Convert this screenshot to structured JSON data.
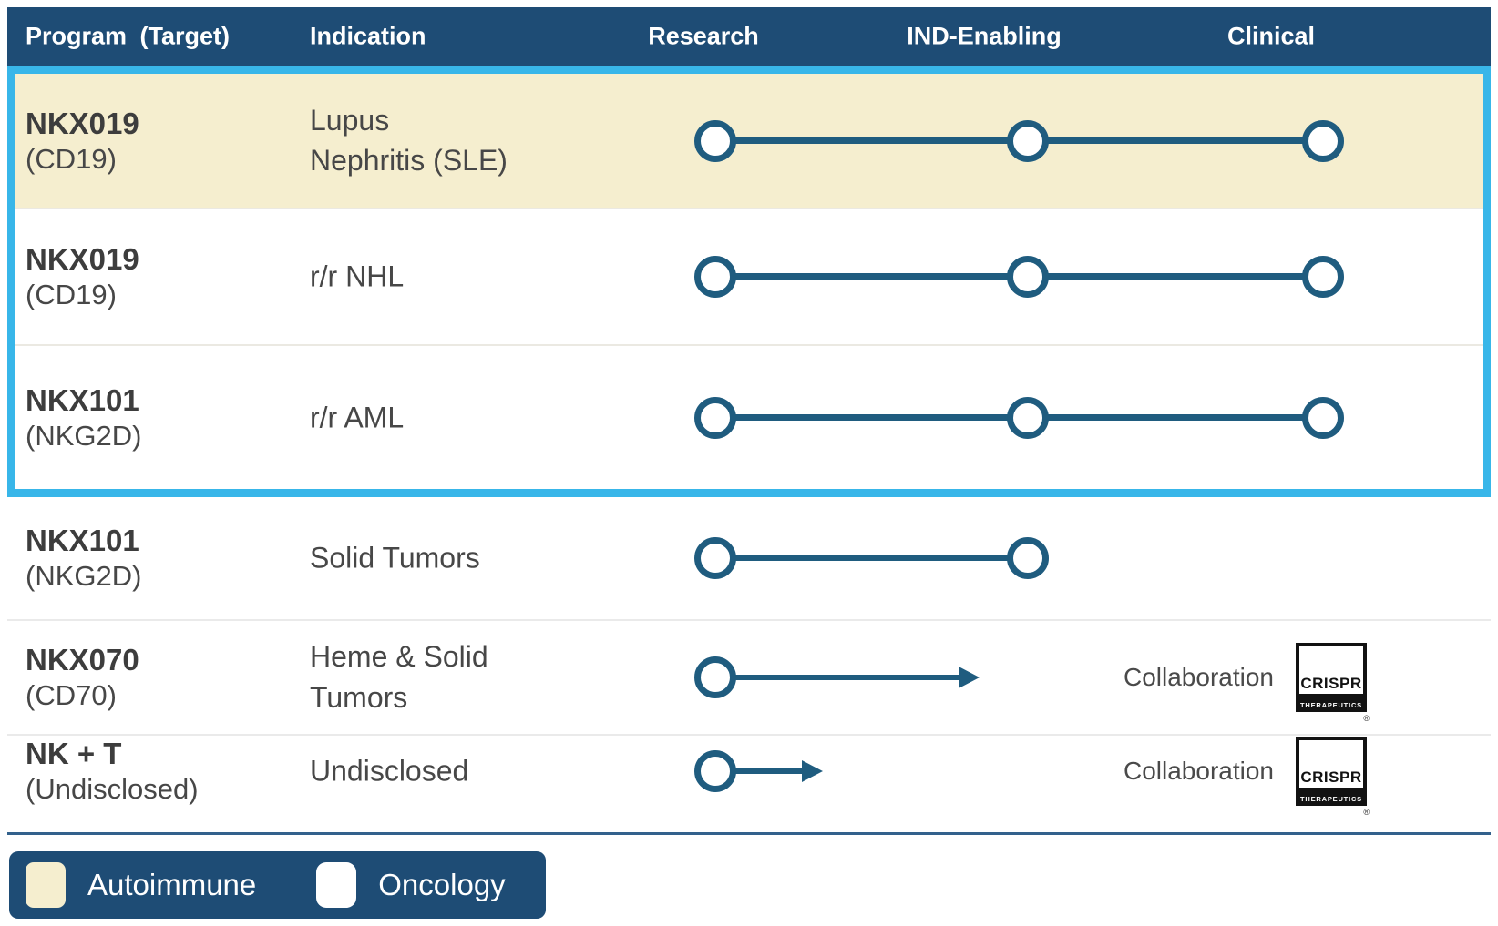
{
  "colors": {
    "header_bg": "#1e4c75",
    "legend_bg": "#1e4c75",
    "timeline": "#1f5c7f",
    "highlight_border": "#38b6e9",
    "autoimmune": "#f5eecf",
    "rule": "#33618c"
  },
  "chart_data": {
    "type": "table",
    "columns": [
      "Program (Target)",
      "Indication",
      "Research",
      "IND-Enabling",
      "Clinical"
    ],
    "rows": [
      {
        "program": "NKX019",
        "target": "(CD19)",
        "indication": "Lupus\nNephritis (SLE)",
        "category": "Autoimmune",
        "highlighted": true,
        "timeline": {
          "type": "milestones",
          "points": [
            "Research",
            "IND-Enabling",
            "Clinical"
          ]
        }
      },
      {
        "program": "NKX019",
        "target": "(CD19)",
        "indication": "r/r NHL",
        "category": "Oncology",
        "highlighted": true,
        "timeline": {
          "type": "milestones",
          "points": [
            "Research",
            "IND-Enabling",
            "Clinical"
          ]
        }
      },
      {
        "program": "NKX101",
        "target": "(NKG2D)",
        "indication": "r/r AML",
        "category": "Oncology",
        "highlighted": true,
        "timeline": {
          "type": "milestones",
          "points": [
            "Research",
            "IND-Enabling",
            "Clinical"
          ]
        }
      },
      {
        "program": "NKX101",
        "target": "(NKG2D)",
        "indication": "Solid Tumors",
        "category": "Oncology",
        "highlighted": false,
        "timeline": {
          "type": "milestones",
          "points": [
            "Research",
            "IND-Enabling"
          ]
        }
      },
      {
        "program": "NKX070",
        "target": "(CD70)",
        "indication": "Heme & Solid\nTumors",
        "category": "Oncology",
        "highlighted": false,
        "timeline": {
          "type": "arrow",
          "from": "Research",
          "toward": "IND-Enabling"
        },
        "collaboration": "Collaboration"
      },
      {
        "program": "NK + T",
        "target": "(Undisclosed)",
        "indication": "Undisclosed",
        "category": "Oncology",
        "highlighted": false,
        "timeline": {
          "type": "arrow-short",
          "from": "Research"
        },
        "collaboration": "Collaboration"
      }
    ],
    "legend": [
      {
        "label": "Autoimmune",
        "color": "#f5eecf"
      },
      {
        "label": "Oncology",
        "color": "#ffffff"
      }
    ]
  },
  "logo": {
    "name": "CRISPR Therapeutics",
    "line1": "CRISPR",
    "line2": "THERAPEUTICS",
    "registered": "®"
  }
}
